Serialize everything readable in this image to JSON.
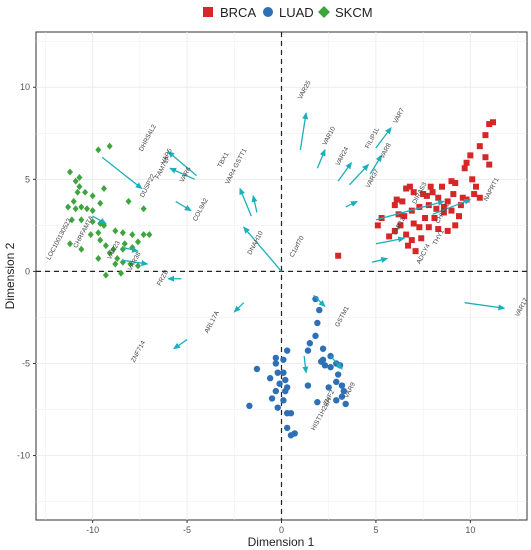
{
  "chart_data": {
    "type": "scatter",
    "xlabel": "Dimension 1",
    "ylabel": "Dimension 2",
    "xlim": [
      -13,
      13
    ],
    "ylim": [
      -13.5,
      13
    ],
    "x_ticks": [
      -10,
      -5,
      0,
      5,
      10
    ],
    "y_ticks": [
      -10,
      -5,
      0,
      5,
      10
    ],
    "grid": true,
    "reference_lines": {
      "x": 0,
      "y": 0,
      "style": "dashed"
    },
    "legend_position": "top",
    "colors": {
      "BRCA": "#d62728",
      "LUAD": "#2e6fb5",
      "SKCM": "#3ea53e",
      "arrow": "#1ab0bb"
    },
    "series": [
      {
        "name": "BRCA",
        "marker": "square",
        "points": [
          [
            3.0,
            0.85
          ],
          [
            6.8,
            4.6
          ],
          [
            7.0,
            4.3
          ],
          [
            7.5,
            4.2
          ],
          [
            8.0,
            4.3
          ],
          [
            8.5,
            4.6
          ],
          [
            9.0,
            4.9
          ],
          [
            9.2,
            4.8
          ],
          [
            10.0,
            6.3
          ],
          [
            10.5,
            6.8
          ],
          [
            10.8,
            7.4
          ],
          [
            11.0,
            8.0
          ],
          [
            11.2,
            8.1
          ],
          [
            10.8,
            6.2
          ],
          [
            11.0,
            5.8
          ],
          [
            9.8,
            5.9
          ],
          [
            9.7,
            5.6
          ],
          [
            10.1,
            5.0
          ],
          [
            10.3,
            4.6
          ],
          [
            10.2,
            4.2
          ],
          [
            9.8,
            3.9
          ],
          [
            9.5,
            3.6
          ],
          [
            9.0,
            3.3
          ],
          [
            8.6,
            3.2
          ],
          [
            8.2,
            3.4
          ],
          [
            7.8,
            3.6
          ],
          [
            7.3,
            3.5
          ],
          [
            6.9,
            3.3
          ],
          [
            6.5,
            3.0
          ],
          [
            6.2,
            3.1
          ],
          [
            6.0,
            3.6
          ],
          [
            6.4,
            3.8
          ],
          [
            7.0,
            2.6
          ],
          [
            7.3,
            2.4
          ],
          [
            7.8,
            2.4
          ],
          [
            8.3,
            2.3
          ],
          [
            8.8,
            2.2
          ],
          [
            9.2,
            2.5
          ],
          [
            9.4,
            3.0
          ],
          [
            8.8,
            3.8
          ],
          [
            8.3,
            4.0
          ],
          [
            7.7,
            4.1
          ],
          [
            6.6,
            2.0
          ],
          [
            6.9,
            1.7
          ],
          [
            7.4,
            1.8
          ],
          [
            7.1,
            1.1
          ],
          [
            6.7,
            1.4
          ],
          [
            6.3,
            2.5
          ],
          [
            6.0,
            2.2
          ],
          [
            5.7,
            1.9
          ],
          [
            5.3,
            2.9
          ],
          [
            5.1,
            2.5
          ],
          [
            6.1,
            3.9
          ],
          [
            6.6,
            4.5
          ],
          [
            7.9,
            4.6
          ],
          [
            8.6,
            3.5
          ],
          [
            9.6,
            4.0
          ],
          [
            10.5,
            4.0
          ],
          [
            8.1,
            2.9
          ],
          [
            7.6,
            2.9
          ],
          [
            9.1,
            4.2
          ]
        ]
      },
      {
        "name": "LUAD",
        "marker": "circle",
        "points": [
          [
            1.8,
            -1.5
          ],
          [
            2.0,
            -2.1
          ],
          [
            1.9,
            -2.8
          ],
          [
            1.8,
            -3.5
          ],
          [
            1.5,
            -3.9
          ],
          [
            1.4,
            -4.3
          ],
          [
            2.2,
            -4.2
          ],
          [
            2.2,
            -4.8
          ],
          [
            2.3,
            -5.1
          ],
          [
            2.6,
            -5.2
          ],
          [
            2.9,
            -5.0
          ],
          [
            3.1,
            -5.1
          ],
          [
            3.0,
            -5.6
          ],
          [
            2.9,
            -6.0
          ],
          [
            3.2,
            -6.2
          ],
          [
            3.3,
            -6.5
          ],
          [
            3.2,
            -6.8
          ],
          [
            2.9,
            -7.0
          ],
          [
            1.9,
            -7.1
          ],
          [
            1.4,
            -6.2
          ],
          [
            0.3,
            -4.3
          ],
          [
            0.1,
            -4.8
          ],
          [
            -0.3,
            -4.7
          ],
          [
            -0.3,
            -5.0
          ],
          [
            -0.2,
            -5.5
          ],
          [
            0.1,
            -5.5
          ],
          [
            0.2,
            -5.9
          ],
          [
            0.3,
            -6.3
          ],
          [
            0.2,
            -6.5
          ],
          [
            -0.1,
            -6.1
          ],
          [
            -0.3,
            -6.5
          ],
          [
            -0.5,
            -6.9
          ],
          [
            -0.2,
            -7.4
          ],
          [
            0.3,
            -7.7
          ],
          [
            0.5,
            -7.7
          ],
          [
            0.3,
            -8.5
          ],
          [
            0.7,
            -8.8
          ],
          [
            0.5,
            -8.9
          ],
          [
            -1.7,
            -7.3
          ],
          [
            -1.3,
            -5.3
          ],
          [
            2.1,
            -4.9
          ],
          [
            2.6,
            -4.6
          ],
          [
            3.4,
            -7.2
          ],
          [
            -0.6,
            -5.8
          ],
          [
            2.5,
            -6.3
          ],
          [
            0.1,
            -7.0
          ]
        ]
      },
      {
        "name": "SKCM",
        "marker": "diamond",
        "points": [
          [
            -9.7,
            6.6
          ],
          [
            -9.1,
            6.8
          ],
          [
            -11.2,
            5.4
          ],
          [
            -10.9,
            4.9
          ],
          [
            -10.7,
            4.6
          ],
          [
            -10.4,
            4.3
          ],
          [
            -10.0,
            4.1
          ],
          [
            -9.6,
            3.7
          ],
          [
            -10.8,
            4.3
          ],
          [
            -11.0,
            3.8
          ],
          [
            -10.6,
            3.5
          ],
          [
            -10.3,
            3.4
          ],
          [
            -10.0,
            3.3
          ],
          [
            -10.9,
            3.4
          ],
          [
            -11.3,
            3.5
          ],
          [
            -11.1,
            2.8
          ],
          [
            -10.6,
            2.8
          ],
          [
            -10.0,
            2.7
          ],
          [
            -9.6,
            2.6
          ],
          [
            -9.4,
            2.5
          ],
          [
            -9.7,
            2.1
          ],
          [
            -10.1,
            2.0
          ],
          [
            -8.8,
            2.2
          ],
          [
            -8.4,
            2.1
          ],
          [
            -7.9,
            2.0
          ],
          [
            -7.3,
            2.0
          ],
          [
            -7.0,
            2.0
          ],
          [
            -7.6,
            1.6
          ],
          [
            -7.9,
            1.3
          ],
          [
            -8.4,
            1.2
          ],
          [
            -8.9,
            1.2
          ],
          [
            -8.3,
            1.5
          ],
          [
            -9.6,
            1.7
          ],
          [
            -9.3,
            1.4
          ],
          [
            -9.1,
            1.0
          ],
          [
            -8.7,
            0.7
          ],
          [
            -8.4,
            0.5
          ],
          [
            -8.0,
            0.4
          ],
          [
            -7.6,
            0.3
          ],
          [
            -8.8,
            0.4
          ],
          [
            -9.7,
            0.7
          ],
          [
            -8.5,
            -0.1
          ],
          [
            -9.3,
            -0.2
          ],
          [
            -8.1,
            3.8
          ],
          [
            -7.3,
            3.4
          ],
          [
            -10.7,
            5.1
          ],
          [
            -9.4,
            4.5
          ],
          [
            -11.2,
            1.5
          ],
          [
            -10.6,
            1.2
          ]
        ]
      }
    ],
    "loadings": [
      {
        "gene": "VAR25",
        "x": 1.3,
        "y": 8.6
      },
      {
        "gene": "VAR10",
        "x": 2.3,
        "y": 6.6
      },
      {
        "gene": "VAR24",
        "x": 3.7,
        "y": 5.9
      },
      {
        "gene": "FILIP1L",
        "x": 4.6,
        "y": 5.8
      },
      {
        "gene": "VAR7",
        "x": 5.8,
        "y": 7.8
      },
      {
        "gene": "VAR8",
        "x": 5.3,
        "y": 6.3
      },
      {
        "gene": "VAR37",
        "x": 4.0,
        "y": 3.8
      },
      {
        "gene": "VAR1",
        "x": 8.6,
        "y": 3.8
      },
      {
        "gene": "NAPRT1",
        "x": 10.0,
        "y": 3.9
      },
      {
        "gene": "VAR9",
        "x": 6.5,
        "y": 1.8
      },
      {
        "gene": "ADCY4",
        "x": 5.6,
        "y": 0.7
      },
      {
        "gene": "VAR17",
        "x": 11.8,
        "y": -2.0
      },
      {
        "gene": "GSTM1",
        "x": 2.3,
        "y": -1.9
      },
      {
        "gene": "VAR16",
        "x": 3.2,
        "y": -5.3
      },
      {
        "gene": "HIST1H2BH",
        "x": 1.3,
        "y": -5.5
      },
      {
        "gene": "ZNF714",
        "x": -5.7,
        "y": -4.2
      },
      {
        "gene": "ARL17A",
        "x": -2.5,
        "y": -2.2
      },
      {
        "gene": "FRZB",
        "x": -6.0,
        "y": -0.4
      },
      {
        "gene": "VAR38",
        "x": -7.1,
        "y": 0.4
      },
      {
        "gene": "VAR3",
        "x": -7.6,
        "y": 1.1
      },
      {
        "gene": "CHRFAM7A",
        "x": -9.3,
        "y": 2.6
      },
      {
        "gene": "DUSP22",
        "x": -7.4,
        "y": 4.5
      },
      {
        "gene": "COL9A2",
        "x": -4.8,
        "y": 3.3
      },
      {
        "gene": "DNAH10",
        "x": -2.0,
        "y": 2.4
      },
      {
        "gene": "GSTT1",
        "x": -1.5,
        "y": 4.1
      },
      {
        "gene": "TBX1",
        "x": -2.2,
        "y": 4.5
      },
      {
        "gene": "DHRS4L2",
        "x": -6.0,
        "y": 6.5
      },
      {
        "gene": "FAM71F",
        "x": -5.9,
        "y": 5.6
      }
    ],
    "loading_labels": [
      {
        "gene": "VAR25",
        "x": 1.3,
        "y": 9.8
      },
      {
        "gene": "VAR10",
        "x": 2.6,
        "y": 7.3
      },
      {
        "gene": "VAR24",
        "x": 3.3,
        "y": 6.2
      },
      {
        "gene": "FILIP1L",
        "x": 4.9,
        "y": 7.2
      },
      {
        "gene": "VAR7",
        "x": 6.3,
        "y": 8.4
      },
      {
        "gene": "VAR8",
        "x": 5.6,
        "y": 6.5
      },
      {
        "gene": "VAR37",
        "x": 4.9,
        "y": 5.0
      },
      {
        "gene": "DIRAS3",
        "x": 7.4,
        "y": 4.2
      },
      {
        "gene": "NAPRT1",
        "x": 11.2,
        "y": 4.4
      },
      {
        "gene": "CHI3L1",
        "x": 8.6,
        "y": 3.1
      },
      {
        "gene": "VAR12",
        "x": 6.3,
        "y": 2.4
      },
      {
        "gene": "THY1",
        "x": 8.4,
        "y": 1.8
      },
      {
        "gene": "ADCY4",
        "x": 7.6,
        "y": 0.9
      },
      {
        "gene": "VAR17",
        "x": 12.8,
        "y": -2.0
      },
      {
        "gene": "GSTM1",
        "x": 3.3,
        "y": -2.5
      },
      {
        "gene": "VAR9",
        "x": 3.7,
        "y": -6.5
      },
      {
        "gene": "ZNF2",
        "x": 2.6,
        "y": -6.9
      },
      {
        "gene": "HIST1H2BH",
        "x": 2.2,
        "y": -7.8
      },
      {
        "gene": "ZNF714",
        "x": -7.5,
        "y": -4.4
      },
      {
        "gene": "ARL17A",
        "x": -3.6,
        "y": -2.8
      },
      {
        "gene": "FRZB",
        "x": -6.2,
        "y": -0.4
      },
      {
        "gene": "VAR38",
        "x": -7.7,
        "y": 0.5
      },
      {
        "gene": "VAR23",
        "x": -8.8,
        "y": 1.1
      },
      {
        "gene": "LOC100130522",
        "x": -11.7,
        "y": 1.7
      },
      {
        "gene": "CHRFAM7A",
        "x": -10.4,
        "y": 2.1
      },
      {
        "gene": "DUSP22",
        "x": -7.0,
        "y": 4.6
      },
      {
        "gene": "COL9A2",
        "x": -4.2,
        "y": 3.3
      },
      {
        "gene": "DNAH10",
        "x": -1.3,
        "y": 1.5
      },
      {
        "gene": "C1orf70",
        "x": 0.9,
        "y": 1.3
      },
      {
        "gene": "GSTT1",
        "x": -2.1,
        "y": 6.1
      },
      {
        "gene": "TBX1",
        "x": -3.0,
        "y": 6.0
      },
      {
        "gene": "VAR4",
        "x": -2.6,
        "y": 5.1
      },
      {
        "gene": "DHRS4L2",
        "x": -7.0,
        "y": 7.2
      },
      {
        "gene": "VAR5",
        "x": -6.0,
        "y": 6.2
      },
      {
        "gene": "FAM71F",
        "x": -6.2,
        "y": 5.6
      },
      {
        "gene": "VAR6",
        "x": -5.0,
        "y": 5.2
      }
    ]
  },
  "legend": {
    "items": [
      {
        "label": "BRCA",
        "marker": "square",
        "color": "#d62728"
      },
      {
        "label": "LUAD",
        "marker": "circle",
        "color": "#2e6fb5"
      },
      {
        "label": "SKCM",
        "marker": "diamond",
        "color": "#3ea53e"
      }
    ]
  }
}
